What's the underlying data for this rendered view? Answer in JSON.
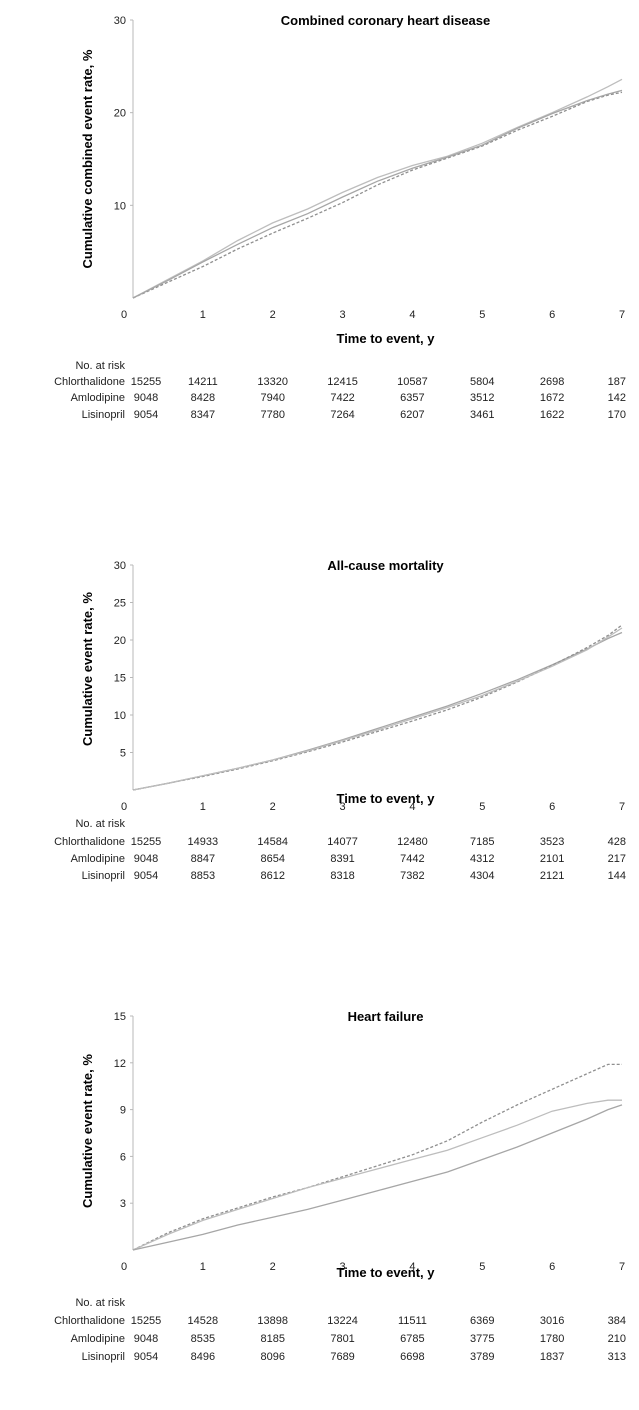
{
  "chart_data": [
    {
      "type": "line",
      "title": "Combined coronary heart disease",
      "xlabel": "Time to event, y",
      "ylabel": "Cumulative combined event rate, %",
      "xlim": [
        0,
        7
      ],
      "ylim": [
        0,
        30
      ],
      "xticks": [
        "0",
        "1",
        "2",
        "3",
        "4",
        "5",
        "6",
        "7"
      ],
      "yticks": [
        "10",
        "20",
        "30"
      ],
      "grid": false,
      "x": [
        0,
        0.5,
        1,
        1.5,
        2,
        2.5,
        3,
        3.5,
        4,
        4.5,
        5,
        5.5,
        6,
        6.5,
        6.8,
        7
      ],
      "series": [
        {
          "color": "#bdbdbd",
          "dash": "",
          "values": [
            0,
            2.0,
            4.0,
            6.2,
            8.1,
            9.6,
            11.4,
            13.0,
            14.3,
            15.3,
            16.7,
            18.4,
            20.0,
            21.7,
            22.8,
            23.6
          ]
        },
        {
          "color": "#8f8f8f",
          "dash": "3,2",
          "values": [
            0,
            1.7,
            3.4,
            5.3,
            7.0,
            8.6,
            10.3,
            12.2,
            13.8,
            15.1,
            16.4,
            18.1,
            19.6,
            21.2,
            21.9,
            22.2
          ]
        },
        {
          "color": "#a6a6a6",
          "dash": "",
          "values": [
            0,
            1.9,
            3.9,
            5.8,
            7.6,
            9.1,
            10.9,
            12.6,
            14.0,
            15.2,
            16.5,
            18.3,
            19.9,
            21.3,
            22.0,
            22.4
          ]
        }
      ],
      "risk_table": {
        "header": "No. at risk",
        "rows": [
          {
            "label": "Chlorthalidone",
            "values": [
              "15255",
              "14211",
              "13320",
              "12415",
              "10587",
              "5804",
              "2698",
              "187"
            ]
          },
          {
            "label": "Amlodipine",
            "values": [
              "9048",
              "8428",
              "7940",
              "7422",
              "6357",
              "3512",
              "1672",
              "142"
            ]
          },
          {
            "label": "Lisinopril",
            "values": [
              "9054",
              "8347",
              "7780",
              "7264",
              "6207",
              "3461",
              "1622",
              "170"
            ]
          }
        ]
      }
    },
    {
      "type": "line",
      "title": "All-cause mortality",
      "xlabel": "Time to event, y",
      "ylabel": "Cumulative event rate, %",
      "xlim": [
        0,
        7
      ],
      "ylim": [
        0,
        30
      ],
      "xticks": [
        "0",
        "1",
        "2",
        "3",
        "4",
        "5",
        "6",
        "7"
      ],
      "yticks": [
        "5",
        "10",
        "15",
        "20",
        "25",
        "30"
      ],
      "grid": false,
      "x": [
        0,
        0.5,
        1,
        1.5,
        2,
        2.5,
        3,
        3.5,
        4,
        4.5,
        5,
        5.5,
        6,
        6.5,
        6.8,
        7
      ],
      "series": [
        {
          "color": "#a6a6a6",
          "dash": "",
          "values": [
            0,
            0.9,
            1.9,
            2.9,
            4.0,
            5.3,
            6.7,
            8.2,
            9.7,
            11.2,
            12.9,
            14.7,
            16.7,
            18.8,
            20.2,
            21.0
          ]
        },
        {
          "color": "#8f8f8f",
          "dash": "3,2",
          "values": [
            0,
            0.9,
            1.8,
            2.8,
            3.9,
            5.1,
            6.4,
            7.8,
            9.2,
            10.7,
            12.4,
            14.4,
            16.6,
            19.0,
            20.6,
            22.0
          ]
        },
        {
          "color": "#bdbdbd",
          "dash": "",
          "values": [
            0,
            0.9,
            1.9,
            2.9,
            4.0,
            5.2,
            6.6,
            8.0,
            9.5,
            11.0,
            12.6,
            14.5,
            16.5,
            18.7,
            20.4,
            21.6
          ]
        }
      ],
      "risk_table": {
        "header": "No. at risk",
        "rows": [
          {
            "label": "Chlorthalidone",
            "values": [
              "15255",
              "14933",
              "14584",
              "14077",
              "12480",
              "7185",
              "3523",
              "428"
            ]
          },
          {
            "label": "Amlodipine",
            "values": [
              "9048",
              "8847",
              "8654",
              "8391",
              "7442",
              "4312",
              "2101",
              "217"
            ]
          },
          {
            "label": "Lisinopril",
            "values": [
              "9054",
              "8853",
              "8612",
              "8318",
              "7382",
              "4304",
              "2121",
              "144"
            ]
          }
        ]
      }
    },
    {
      "type": "line",
      "title": "Heart failure",
      "xlabel": "Time to event, y",
      "ylabel": "Cumulative event rate, %",
      "xlim": [
        0,
        7
      ],
      "ylim": [
        0,
        15
      ],
      "xticks": [
        "0",
        "1",
        "2",
        "3",
        "4",
        "5",
        "6",
        "7"
      ],
      "yticks": [
        "3",
        "6",
        "9",
        "12",
        "15"
      ],
      "grid": false,
      "x": [
        0,
        0.5,
        1,
        1.5,
        2,
        2.5,
        3,
        3.5,
        4,
        4.5,
        5,
        5.5,
        6,
        6.5,
        6.8,
        7
      ],
      "series": [
        {
          "color": "#8f8f8f",
          "dash": "3,2",
          "values": [
            0,
            1.1,
            2.0,
            2.7,
            3.4,
            4.0,
            4.7,
            5.4,
            6.1,
            7.0,
            8.2,
            9.3,
            10.3,
            11.3,
            11.9,
            11.9
          ]
        },
        {
          "color": "#bdbdbd",
          "dash": "",
          "values": [
            0,
            1.0,
            1.9,
            2.6,
            3.3,
            4.0,
            4.6,
            5.2,
            5.8,
            6.4,
            7.2,
            8.0,
            8.9,
            9.4,
            9.6,
            9.6
          ]
        },
        {
          "color": "#a6a6a6",
          "dash": "",
          "values": [
            0,
            0.5,
            1.0,
            1.6,
            2.1,
            2.6,
            3.2,
            3.8,
            4.4,
            5.0,
            5.8,
            6.6,
            7.5,
            8.4,
            9.0,
            9.3
          ]
        }
      ],
      "risk_table": {
        "header": "No. at risk",
        "rows": [
          {
            "label": "Chlorthalidone",
            "values": [
              "15255",
              "14528",
              "13898",
              "13224",
              "11511",
              "6369",
              "3016",
              "384"
            ]
          },
          {
            "label": "Amlodipine",
            "values": [
              "9048",
              "8535",
              "8185",
              "7801",
              "6785",
              "3775",
              "1780",
              "210"
            ]
          },
          {
            "label": "Lisinopril",
            "values": [
              "9054",
              "8496",
              "8096",
              "7689",
              "6698",
              "3789",
              "1837",
              "313"
            ]
          }
        ]
      }
    }
  ]
}
